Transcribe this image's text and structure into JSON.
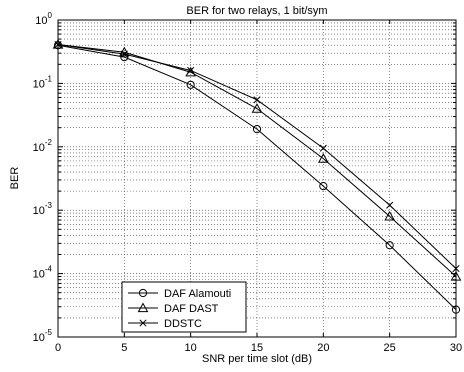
{
  "chart_data": {
    "type": "line",
    "title": "BER for two relays, 1 bit/sym",
    "xlabel": "SNR per time slot (dB)",
    "ylabel": "BER",
    "x": [
      0,
      5,
      10,
      15,
      20,
      25,
      30
    ],
    "xlim": [
      0,
      30
    ],
    "ylim": [
      1e-05,
      1
    ],
    "yscale": "log",
    "grid": true,
    "legend_position": "bottom-left",
    "xticks": [
      "0",
      "5",
      "10",
      "15",
      "20",
      "25",
      "30"
    ],
    "yticks": [
      {
        "base": "10",
        "exp": "0"
      },
      {
        "base": "10",
        "exp": "-1"
      },
      {
        "base": "10",
        "exp": "-2"
      },
      {
        "base": "10",
        "exp": "-3"
      },
      {
        "base": "10",
        "exp": "-4"
      },
      {
        "base": "10",
        "exp": "-5"
      }
    ],
    "series": [
      {
        "name": "DAF Alamouti",
        "marker": "circle",
        "values": [
          0.4,
          0.26,
          0.095,
          0.019,
          0.0024,
          0.00028,
          2.7e-05
        ]
      },
      {
        "name": "DAF DAST",
        "marker": "triangle",
        "values": [
          0.41,
          0.31,
          0.15,
          0.04,
          0.0065,
          0.0008,
          9e-05
        ]
      },
      {
        "name": "DDSTC",
        "marker": "x",
        "values": [
          0.41,
          0.29,
          0.16,
          0.055,
          0.0095,
          0.0012,
          0.00012
        ]
      }
    ]
  }
}
